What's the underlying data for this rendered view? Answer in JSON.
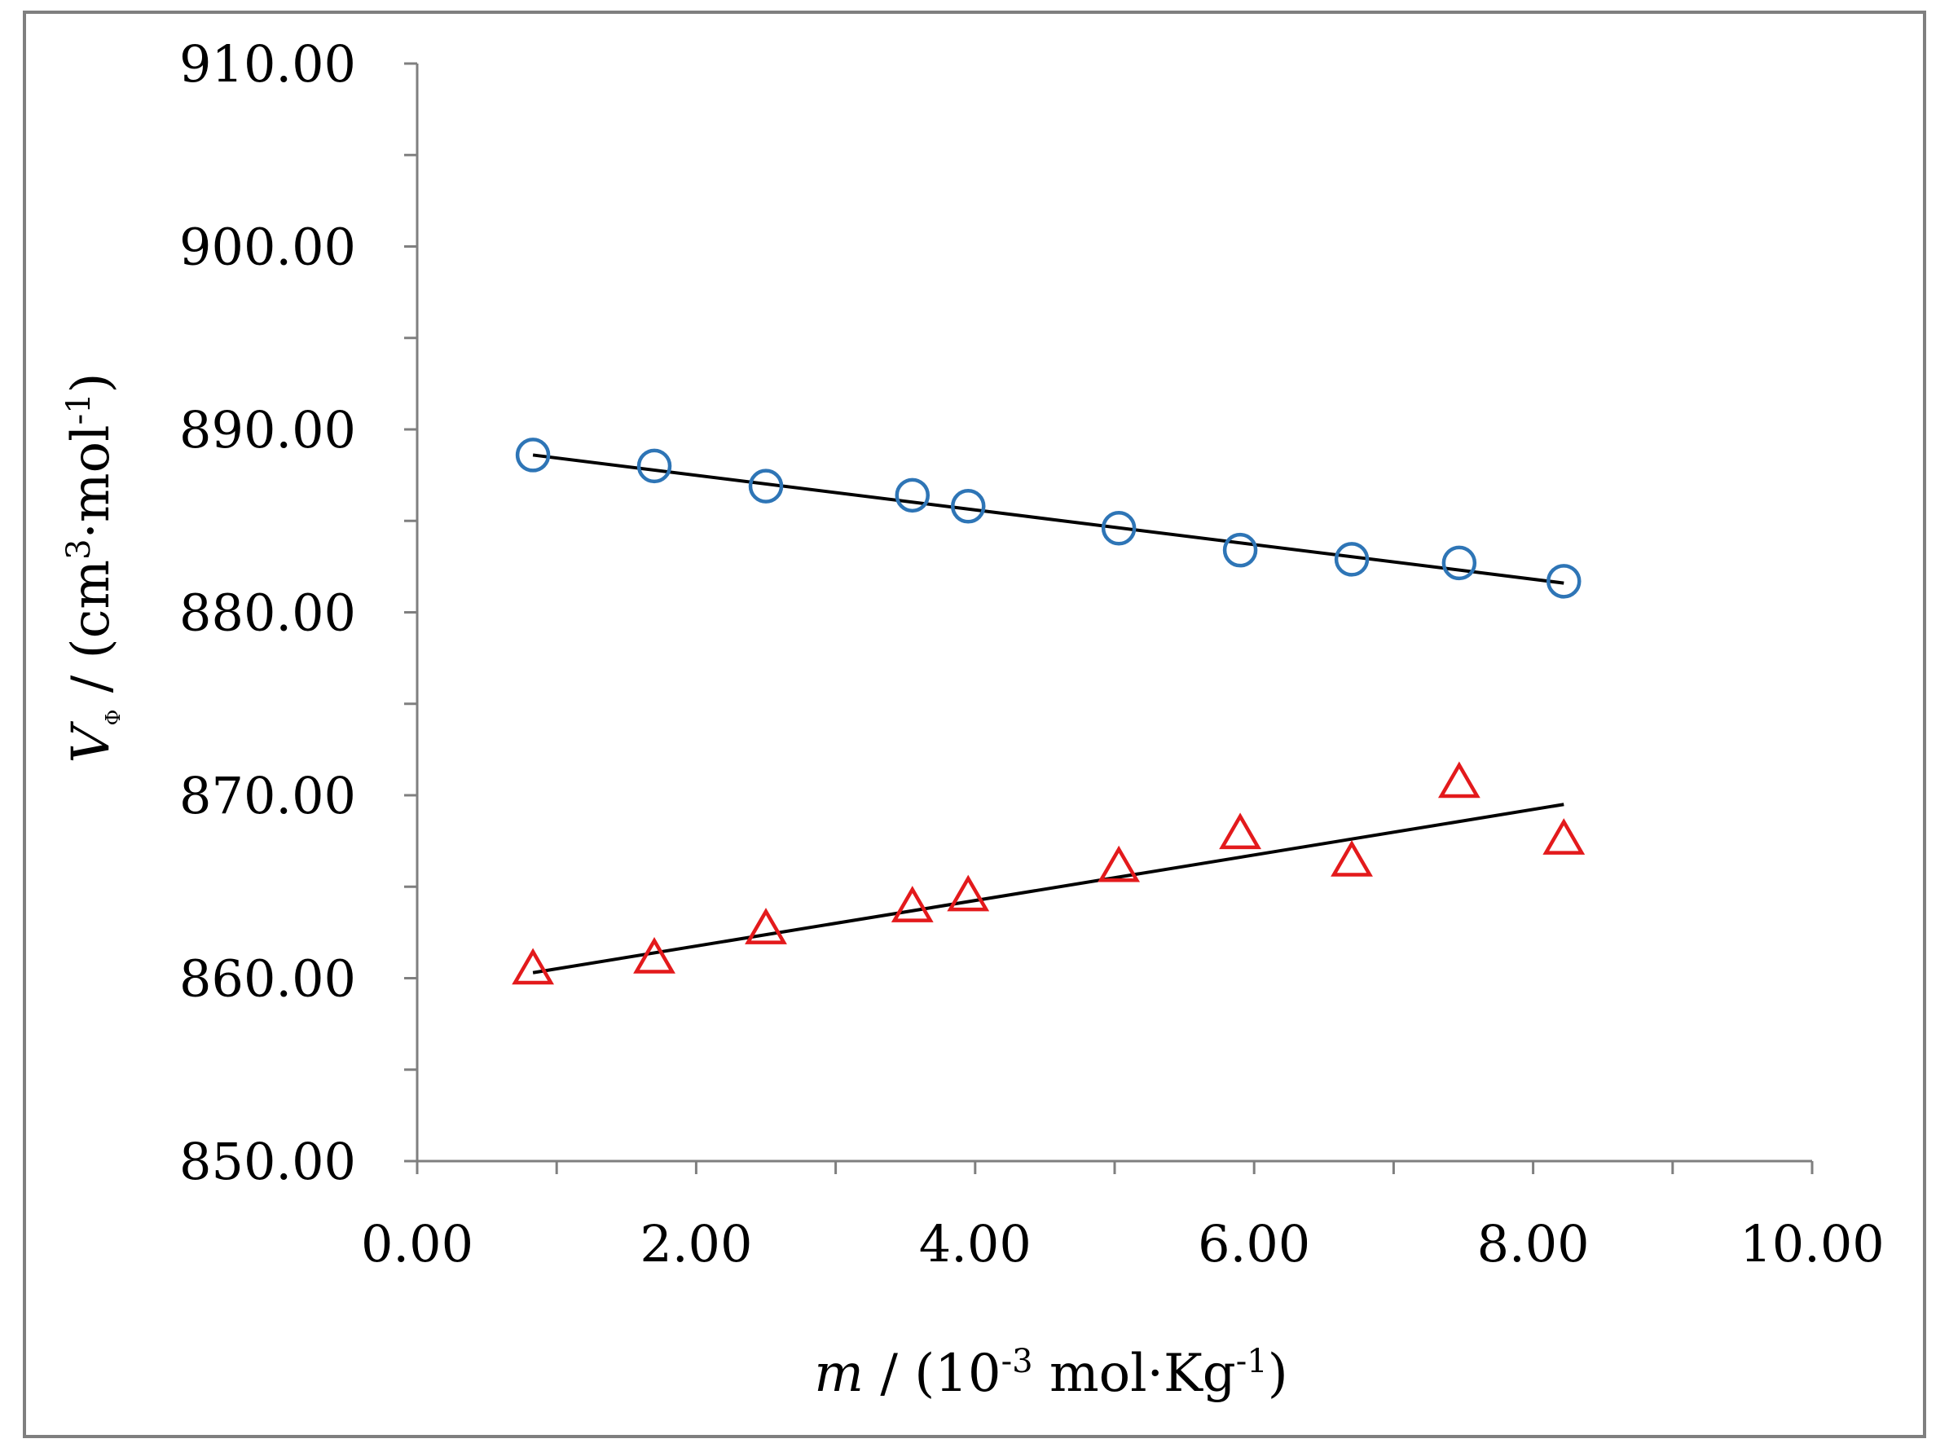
{
  "chart_data": {
    "type": "scatter",
    "title": "",
    "xlim": [
      0,
      10
    ],
    "ylim": [
      850,
      910
    ],
    "x_major_step": 2,
    "x_minor_step": 1,
    "y_major_step": 10,
    "y_minor_step": 5,
    "x_tick_labels": [
      "0.00",
      "2.00",
      "4.00",
      "6.00",
      "8.00",
      "10.00"
    ],
    "y_tick_labels": [
      "850.00",
      "860.00",
      "870.00",
      "880.00",
      "890.00",
      "900.00",
      "910.00"
    ],
    "xlabel": {
      "var": "m",
      "pre": " / (10",
      "exp1": "-3",
      "mid": " mol·Kg",
      "exp2": "-1",
      "post": ")"
    },
    "ylabel": {
      "var": "V",
      "sub": "Φ",
      "pre": " / (cm",
      "exp1": "3",
      "mid": "·mol",
      "exp2": "-1",
      "post": ")"
    },
    "grid": false,
    "legend": "none",
    "series": [
      {
        "name": "circles",
        "marker": "circle",
        "color": "#2e75b6",
        "x": [
          0.83,
          1.7,
          2.5,
          3.55,
          3.95,
          5.03,
          5.9,
          6.7,
          7.47,
          8.22
        ],
        "y": [
          888.6,
          888.0,
          886.9,
          886.4,
          885.8,
          884.6,
          883.4,
          882.9,
          882.7,
          881.7
        ],
        "fit": {
          "color": "#000000",
          "x": [
            0.83,
            8.22
          ],
          "y": [
            888.6,
            881.6
          ]
        }
      },
      {
        "name": "triangles",
        "marker": "triangle",
        "color": "#e31a1c",
        "x": [
          0.83,
          1.7,
          2.5,
          3.55,
          3.95,
          5.03,
          5.9,
          6.7,
          7.47,
          8.22
        ],
        "y": [
          860.4,
          861.0,
          862.6,
          863.8,
          864.4,
          866.0,
          867.8,
          866.3,
          870.6,
          867.5
        ],
        "fit": {
          "color": "#000000",
          "x": [
            0.83,
            8.22
          ],
          "y": [
            860.3,
            869.5
          ]
        }
      }
    ]
  }
}
